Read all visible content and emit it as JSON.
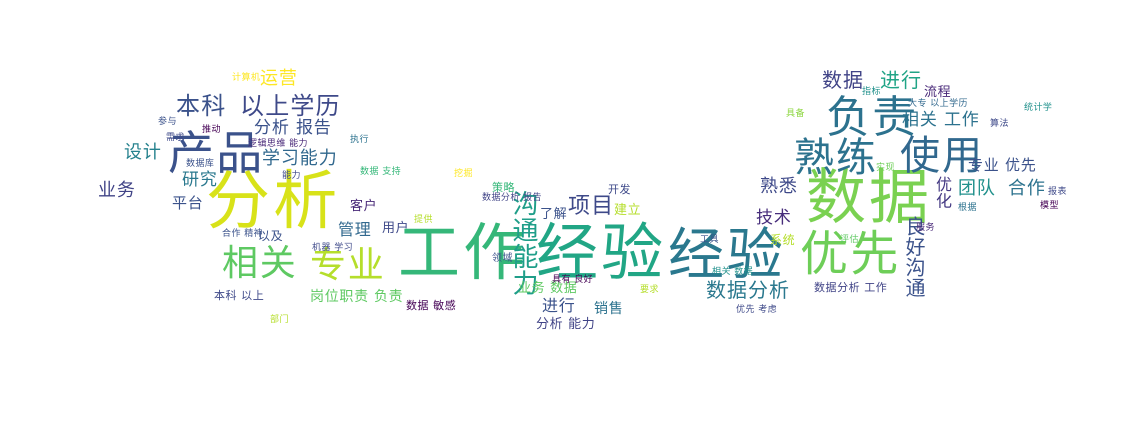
{
  "palette": {
    "yellow": "#e8e419",
    "lime": "#7ad151",
    "green": "#35b779",
    "teal": "#21918c",
    "blue": "#3b528b",
    "navy": "#414487",
    "purple": "#440154"
  },
  "words": [
    {
      "text": "分析",
      "color": "#d8e219"
    },
    {
      "text": "数据",
      "color": "#7ad151"
    },
    {
      "text": "工作",
      "color": "#35b779"
    },
    {
      "text": "经验",
      "color": "#21a685"
    },
    {
      "text": "经验",
      "color": "#2a788e"
    },
    {
      "text": "优先",
      "color": "#6ece58"
    },
    {
      "text": "产品",
      "color": "#3b528b"
    },
    {
      "text": "相关",
      "color": "#5ec962"
    },
    {
      "text": "专业",
      "color": "#b5de2b"
    },
    {
      "text": "熟练",
      "color": "#2c728e"
    },
    {
      "text": "使用",
      "color": "#31688e"
    },
    {
      "text": "负责",
      "color": "#2c728e"
    },
    {
      "text": "本科",
      "color": "#3b528b"
    },
    {
      "text": "以上学历",
      "color": "#3e4989"
    },
    {
      "text": "沟通能力",
      "color": "#1f9e89"
    },
    {
      "text": "项目",
      "color": "#3e4989"
    },
    {
      "text": "数据分析",
      "color": "#2a788e"
    },
    {
      "text": "数据",
      "color": "#414487"
    },
    {
      "text": "进行",
      "color": "#20a486"
    },
    {
      "text": "相关 工作",
      "color": "#2c728e"
    },
    {
      "text": "运营",
      "color": "#fde725"
    },
    {
      "text": "分析 报告",
      "color": "#3b528b"
    },
    {
      "text": "学习能力",
      "color": "#31688e"
    },
    {
      "text": "设计",
      "color": "#26828e"
    },
    {
      "text": "研究",
      "color": "#2a788e"
    },
    {
      "text": "业务",
      "color": "#414487"
    },
    {
      "text": "平台",
      "color": "#3b528b"
    },
    {
      "text": "熟悉",
      "color": "#3e4989"
    },
    {
      "text": "技术",
      "color": "#472d7b"
    },
    {
      "text": "团队",
      "color": "#21918c"
    },
    {
      "text": "合作",
      "color": "#2c728e"
    },
    {
      "text": "专业 优先",
      "color": "#3b528b"
    },
    {
      "text": "流程",
      "color": "#482878"
    },
    {
      "text": "管理",
      "color": "#31688e"
    },
    {
      "text": "用户",
      "color": "#3e4989"
    },
    {
      "text": "岗位职责 负责",
      "color": "#5ec962"
    },
    {
      "text": "进行",
      "color": "#3b528b"
    },
    {
      "text": "分析 能力",
      "color": "#414487"
    },
    {
      "text": "良好沟通",
      "color": "#3b528b"
    },
    {
      "text": "优化",
      "color": "#443983"
    },
    {
      "text": "业务 数据",
      "color": "#5ec962"
    },
    {
      "text": "建立",
      "color": "#b5de2b"
    },
    {
      "text": "开发",
      "color": "#3e4989"
    },
    {
      "text": "了解",
      "color": "#3b528b"
    },
    {
      "text": "销售",
      "color": "#2c728e"
    },
    {
      "text": "客户",
      "color": "#482878"
    },
    {
      "text": "以及",
      "color": "#3b528b"
    },
    {
      "text": "策略",
      "color": "#35b779"
    },
    {
      "text": "数据分析 工作",
      "color": "#414487"
    },
    {
      "text": "系统",
      "color": "#b5de2b"
    },
    {
      "text": "本科 以上",
      "color": "#3e4989"
    },
    {
      "text": "数据 敏感",
      "color": "#440154"
    },
    {
      "text": "统计学",
      "color": "#21918c"
    },
    {
      "text": "计算机",
      "color": "#fde725"
    },
    {
      "text": "机器 学习",
      "color": "#3e4989"
    },
    {
      "text": "逻辑思维 能力",
      "color": "#482878"
    },
    {
      "text": "数据库",
      "color": "#3b528b"
    },
    {
      "text": "合作 精神",
      "color": "#3b528b"
    },
    {
      "text": "数据分析 报告",
      "color": "#414487"
    },
    {
      "text": "领域",
      "color": "#3b528b"
    },
    {
      "text": "模型",
      "color": "#440154"
    },
    {
      "text": "报表",
      "color": "#3e4989"
    },
    {
      "text": "评估",
      "color": "#5ec962"
    },
    {
      "text": "实现",
      "color": "#6ece58"
    },
    {
      "text": "大专 以上学历",
      "color": "#31688e"
    },
    {
      "text": "优先 考虑",
      "color": "#3e4989"
    },
    {
      "text": "数据 支持",
      "color": "#35b779"
    },
    {
      "text": "根据",
      "color": "#2c728e"
    },
    {
      "text": "服务",
      "color": "#482878"
    },
    {
      "text": "推动",
      "color": "#440154"
    },
    {
      "text": "参与",
      "color": "#3b528b"
    },
    {
      "text": "具有 良好",
      "color": "#440154"
    },
    {
      "text": "相关 数据",
      "color": "#21918c"
    },
    {
      "text": "提供",
      "color": "#b5de2b"
    },
    {
      "text": "算法",
      "color": "#3e4989"
    },
    {
      "text": "具备",
      "color": "#8fd744"
    },
    {
      "text": "能力",
      "color": "#3e4989"
    },
    {
      "text": "要求",
      "color": "#b5de2b"
    },
    {
      "text": "工具",
      "color": "#3b528b"
    },
    {
      "text": "指标",
      "color": "#21918c"
    },
    {
      "text": "需求",
      "color": "#3e4989"
    },
    {
      "text": "部门",
      "color": "#b5de2b"
    },
    {
      "text": "挖掘",
      "color": "#fde725"
    },
    {
      "text": "执行",
      "color": "#2c728e"
    }
  ]
}
